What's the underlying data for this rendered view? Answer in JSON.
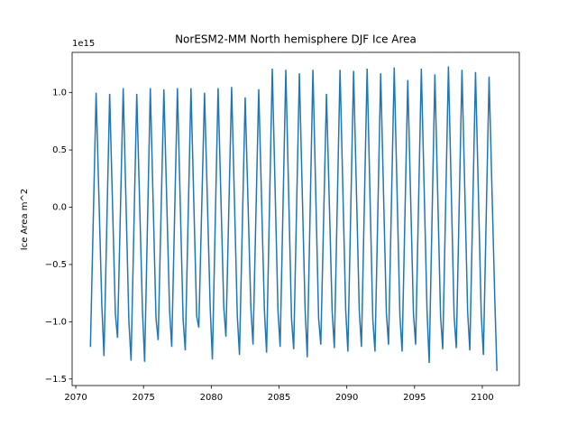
{
  "chart_data": {
    "type": "line",
    "title": "NorESM2-MM North hemisphere DJF Ice Area",
    "y_label": "Ice Area m^2",
    "y_offset_label": "1e15",
    "series": [
      {
        "color": "#1f77b4",
        "x": [
          2071.08,
          2071.5,
          2071.92,
          2072.08,
          2072.5,
          2072.92,
          2073.08,
          2073.5,
          2073.92,
          2074.08,
          2074.5,
          2074.92,
          2075.08,
          2075.5,
          2075.92,
          2076.08,
          2076.5,
          2076.92,
          2077.08,
          2077.5,
          2077.92,
          2078.08,
          2078.5,
          2078.92,
          2079.08,
          2079.5,
          2079.92,
          2080.08,
          2080.5,
          2080.92,
          2081.08,
          2081.5,
          2081.92,
          2082.08,
          2082.5,
          2082.92,
          2083.08,
          2083.5,
          2083.92,
          2084.08,
          2084.5,
          2084.92,
          2085.08,
          2085.5,
          2085.92,
          2086.08,
          2086.5,
          2086.92,
          2087.08,
          2087.5,
          2087.92,
          2088.08,
          2088.5,
          2088.92,
          2089.08,
          2089.5,
          2089.92,
          2090.08,
          2090.5,
          2090.92,
          2091.08,
          2091.5,
          2091.92,
          2092.08,
          2092.5,
          2092.92,
          2093.08,
          2093.5,
          2093.92,
          2094.08,
          2094.5,
          2094.92,
          2095.08,
          2095.5,
          2095.92,
          2096.08,
          2096.5,
          2096.92,
          2097.08,
          2097.5,
          2097.92,
          2098.08,
          2098.5,
          2098.92,
          2099.08,
          2099.5,
          2099.92,
          2100.08,
          2100.5,
          2100.92,
          2101.08
        ],
        "values": [
          -1.22,
          1.0,
          -0.85,
          -1.3,
          0.99,
          -0.93,
          -1.14,
          1.04,
          -1.0,
          -1.34,
          0.99,
          -0.9,
          -1.35,
          1.04,
          -0.97,
          -1.16,
          1.03,
          -0.9,
          -1.22,
          1.04,
          -0.98,
          -1.25,
          1.04,
          -0.95,
          -1.05,
          1.0,
          -0.88,
          -1.33,
          1.04,
          -0.87,
          -1.13,
          1.05,
          -0.95,
          -1.29,
          0.96,
          -0.88,
          -1.2,
          1.03,
          -0.9,
          -1.27,
          1.21,
          -0.9,
          -1.22,
          1.2,
          -0.97,
          -1.24,
          1.17,
          -0.88,
          -1.31,
          1.2,
          -0.97,
          -1.2,
          0.99,
          -0.91,
          -1.23,
          1.2,
          -0.9,
          -1.26,
          1.19,
          -0.9,
          -1.22,
          1.21,
          -0.98,
          -1.26,
          1.17,
          -0.92,
          -1.2,
          1.22,
          -0.95,
          -1.26,
          1.11,
          -0.93,
          -1.2,
          1.21,
          -0.9,
          -1.36,
          1.16,
          -0.95,
          -1.24,
          1.23,
          -0.95,
          -1.23,
          1.2,
          -0.92,
          -1.25,
          1.18,
          -0.93,
          -1.29,
          1.14,
          -0.8,
          -1.43
        ]
      }
    ],
    "xlim": [
      2069.73,
      2102.73
    ],
    "xticks": [
      2070,
      2075,
      2080,
      2085,
      2090,
      2095,
      2100
    ],
    "ylim": [
      -1.557,
      1.352
    ],
    "yticks": [
      {
        "value": -1.5,
        "label": "−1.5"
      },
      {
        "value": -1.0,
        "label": "−1.0"
      },
      {
        "value": -0.5,
        "label": "−0.5"
      },
      {
        "value": 0,
        "label": "0.0"
      },
      {
        "value": 0.5,
        "label": "0.5"
      },
      {
        "value": 1.0,
        "label": "1.0"
      }
    ]
  }
}
